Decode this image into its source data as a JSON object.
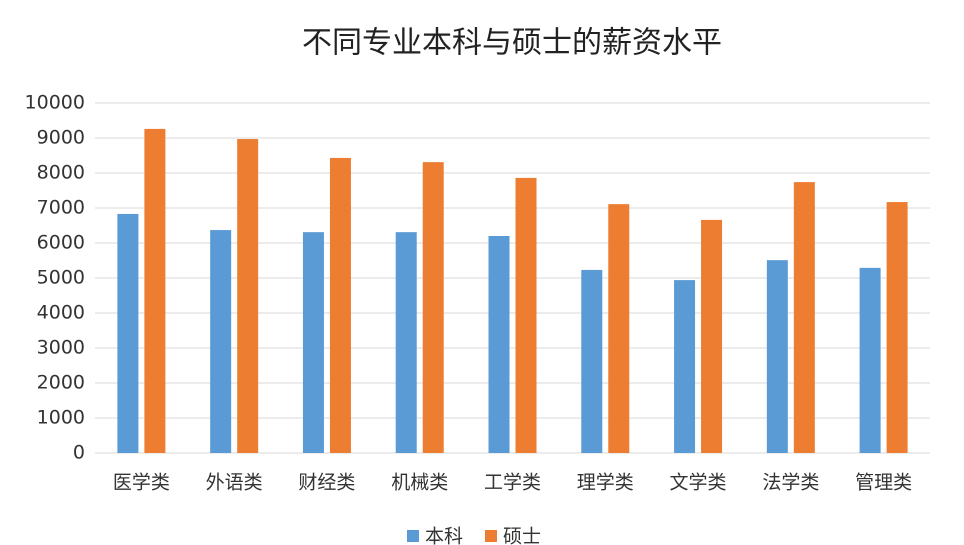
{
  "chart_data": {
    "type": "bar",
    "title": "不同专业本科与硕士的薪资水平",
    "categories": [
      "医学类",
      "外语类",
      "财经类",
      "机械类",
      "工学类",
      "理学类",
      "文学类",
      "法学类",
      "管理类"
    ],
    "series": [
      {
        "name": "本科",
        "color": "#5b9bd5",
        "values": [
          6830,
          6370,
          6310,
          6310,
          6200,
          5230,
          4940,
          5510,
          5290
        ]
      },
      {
        "name": "硕士",
        "color": "#ed7d31",
        "values": [
          9260,
          8970,
          8430,
          8310,
          7860,
          7110,
          6660,
          7740,
          7170
        ]
      }
    ],
    "ylim": [
      0,
      10000
    ],
    "yticks": [
      0,
      1000,
      2000,
      3000,
      4000,
      5000,
      6000,
      7000,
      8000,
      9000,
      10000
    ],
    "grid": true,
    "legend": "bottom"
  }
}
